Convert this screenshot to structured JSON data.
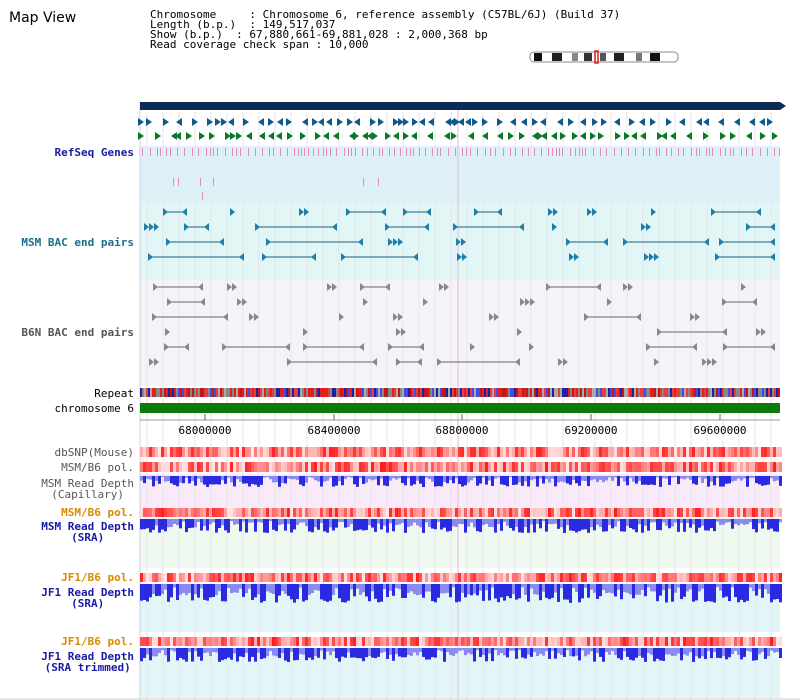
{
  "title": "Map View",
  "info": {
    "line1": "Chromosome     : Chromosome 6, reference assembly (C57BL/6J) (Build 37)",
    "line2": "Length (b.p.)  : 149,517,037",
    "line3": "Show (b.p.)  : 67,880,661-69,881,028 : 2,000,368 bp",
    "line4": "Read coverage check span : 10,000"
  },
  "track_labels": {
    "refseq": "RefSeq Genes",
    "msm_bac": "MSM BAC end pairs",
    "b6n_bac": "B6N BAC end pairs",
    "repeat": "Repeat",
    "chromosome": "chromosome 6",
    "dbsnp": "dbSNP(Mouse)",
    "msm_b6_pol_1": "MSM/B6 pol.",
    "msm_read_depth_cap_1": "MSM Read Depth",
    "msm_read_depth_cap_2": "(Capillary)",
    "msm_b6_pol_2": "MSM/B6 pol.",
    "msm_read_depth_sra_1": "MSM Read Depth",
    "msm_read_depth_sra_2": "(SRA)",
    "jf1_b6_pol_1": "JF1/B6 pol.",
    "jf1_read_depth_sra_1": "JF1 Read Depth",
    "jf1_read_depth_sra_2": "(SRA)",
    "jf1_b6_pol_2": "JF1/B6 pol.",
    "jf1_read_depth_trim_1": "JF1 Read Depth",
    "jf1_read_depth_trim_2": "(SRA trimmed)"
  },
  "axis_ticks": [
    "68000000",
    "68400000",
    "68800000",
    "69200000",
    "69600000"
  ],
  "colors": {
    "label_blue": "#1a1aa6",
    "label_teal": "#1a6f8a",
    "label_gray": "#555555",
    "label_orange": "#d88a00",
    "navy_bar": "#0f2a55",
    "chrom_green": "#0a7a0a",
    "refseq_bg": "#dff1f8",
    "msm_bg": "#e3f6f6",
    "b6n_bg": "#f4f4f8",
    "depth_purple": "#4a4ae0",
    "pol_red": "#e03030"
  }
}
